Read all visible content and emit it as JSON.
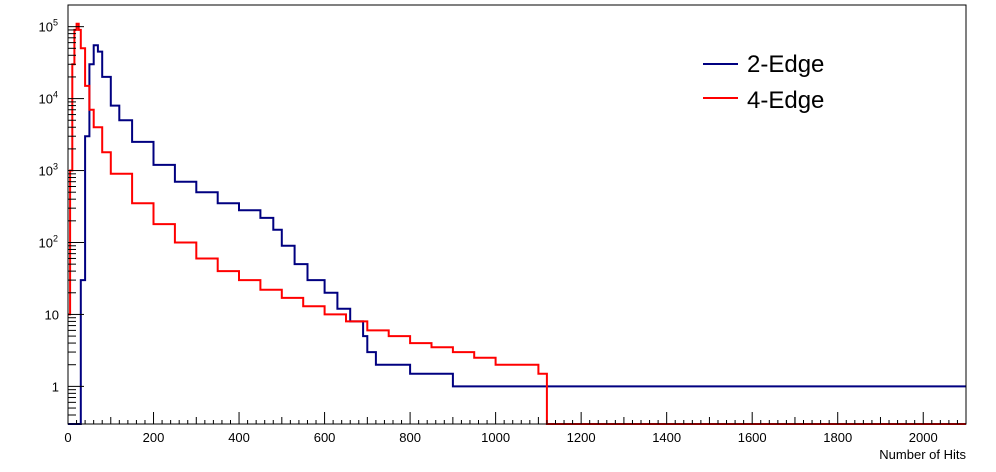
{
  "chart_data": {
    "type": "line",
    "title": "",
    "xlabel": "Number of Hits",
    "ylabel": "",
    "xlim": [
      0,
      2100
    ],
    "ylim": [
      0.3,
      200000
    ],
    "y_scale": "log",
    "grid": false,
    "legend_position": "top-right",
    "x_ticks": [
      0,
      200,
      400,
      600,
      800,
      1000,
      1200,
      1400,
      1600,
      1800,
      2000
    ],
    "x_tick_labels": [
      "0",
      "200",
      "400",
      "600",
      "800",
      "1000",
      "1200",
      "1400",
      "1600",
      "1800",
      "2000"
    ],
    "y_ticks": [
      1,
      10,
      100,
      1000,
      10000,
      100000
    ],
    "y_tick_labels": [
      {
        "base": "1",
        "exp": ""
      },
      {
        "base": "10",
        "exp": ""
      },
      {
        "base": "10",
        "exp": "2"
      },
      {
        "base": "10",
        "exp": "3"
      },
      {
        "base": "10",
        "exp": "4"
      },
      {
        "base": "10",
        "exp": "5"
      }
    ],
    "series": [
      {
        "name": "2-Edge",
        "color": "#000080",
        "x": [
          0,
          15,
          20,
          25,
          30,
          40,
          50,
          60,
          70,
          80,
          100,
          120,
          150,
          200,
          250,
          300,
          350,
          400,
          450,
          480,
          500,
          530,
          560,
          600,
          630,
          660,
          690,
          700,
          720,
          760,
          800,
          850,
          900,
          1000,
          1100,
          1150,
          1200,
          1300,
          1400,
          1500,
          1600,
          1700,
          1800,
          1900,
          2000,
          2090
        ],
        "values": [
          0,
          0,
          0,
          0,
          30,
          3000,
          30000,
          55000,
          45000,
          20000,
          8000,
          5000,
          2500,
          1200,
          700,
          500,
          350,
          280,
          220,
          150,
          90,
          50,
          30,
          20,
          12,
          8,
          5,
          3,
          2,
          2,
          1.5,
          1.5,
          1,
          1,
          1,
          1,
          1,
          1,
          1,
          1,
          1,
          1,
          1,
          1,
          1,
          1
        ]
      },
      {
        "name": "4-Edge",
        "color": "#ff0000",
        "x": [
          0,
          5,
          10,
          15,
          20,
          25,
          30,
          40,
          50,
          60,
          80,
          100,
          150,
          200,
          250,
          300,
          350,
          400,
          450,
          500,
          550,
          600,
          650,
          700,
          750,
          800,
          850,
          900,
          950,
          1000,
          1050,
          1100,
          1120
        ],
        "values": [
          10,
          1000,
          30000,
          90000,
          110000,
          90000,
          50000,
          15000,
          7000,
          4000,
          1800,
          900,
          350,
          180,
          100,
          60,
          40,
          30,
          22,
          17,
          13,
          10,
          8,
          6,
          5,
          4,
          3.5,
          3,
          2.5,
          2,
          2,
          1.5,
          0
        ]
      }
    ]
  }
}
